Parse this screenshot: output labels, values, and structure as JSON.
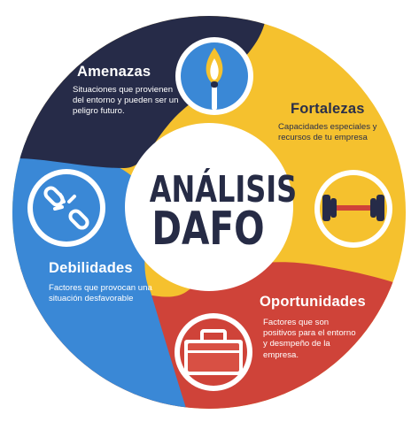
{
  "center": {
    "line1": "ANÁLISIS",
    "line2": "DAFO"
  },
  "quadrants": [
    {
      "key": "amenazas",
      "title": "Amenazas",
      "description": "Situaciones que provienen del entorno y pueden ser un peligro futuro.",
      "color": "#262b48",
      "icon": "match-icon"
    },
    {
      "key": "fortalezas",
      "title": "Fortalezas",
      "description": "Capacidades especiales y recursos de tu empresa",
      "color": "#f5c12e",
      "icon": "dumbbell-icon"
    },
    {
      "key": "oportunidades",
      "title": "Oportunidades",
      "description": "Factores que son positivos para el entorno y desmpeño de la empresa.",
      "color": "#cf4339",
      "icon": "briefcase-icon"
    },
    {
      "key": "debilidades",
      "title": "Debilidades",
      "description": "Factores que provocan una situación desfavorable",
      "color": "#3a88d6",
      "icon": "broken-chain-icon"
    }
  ]
}
